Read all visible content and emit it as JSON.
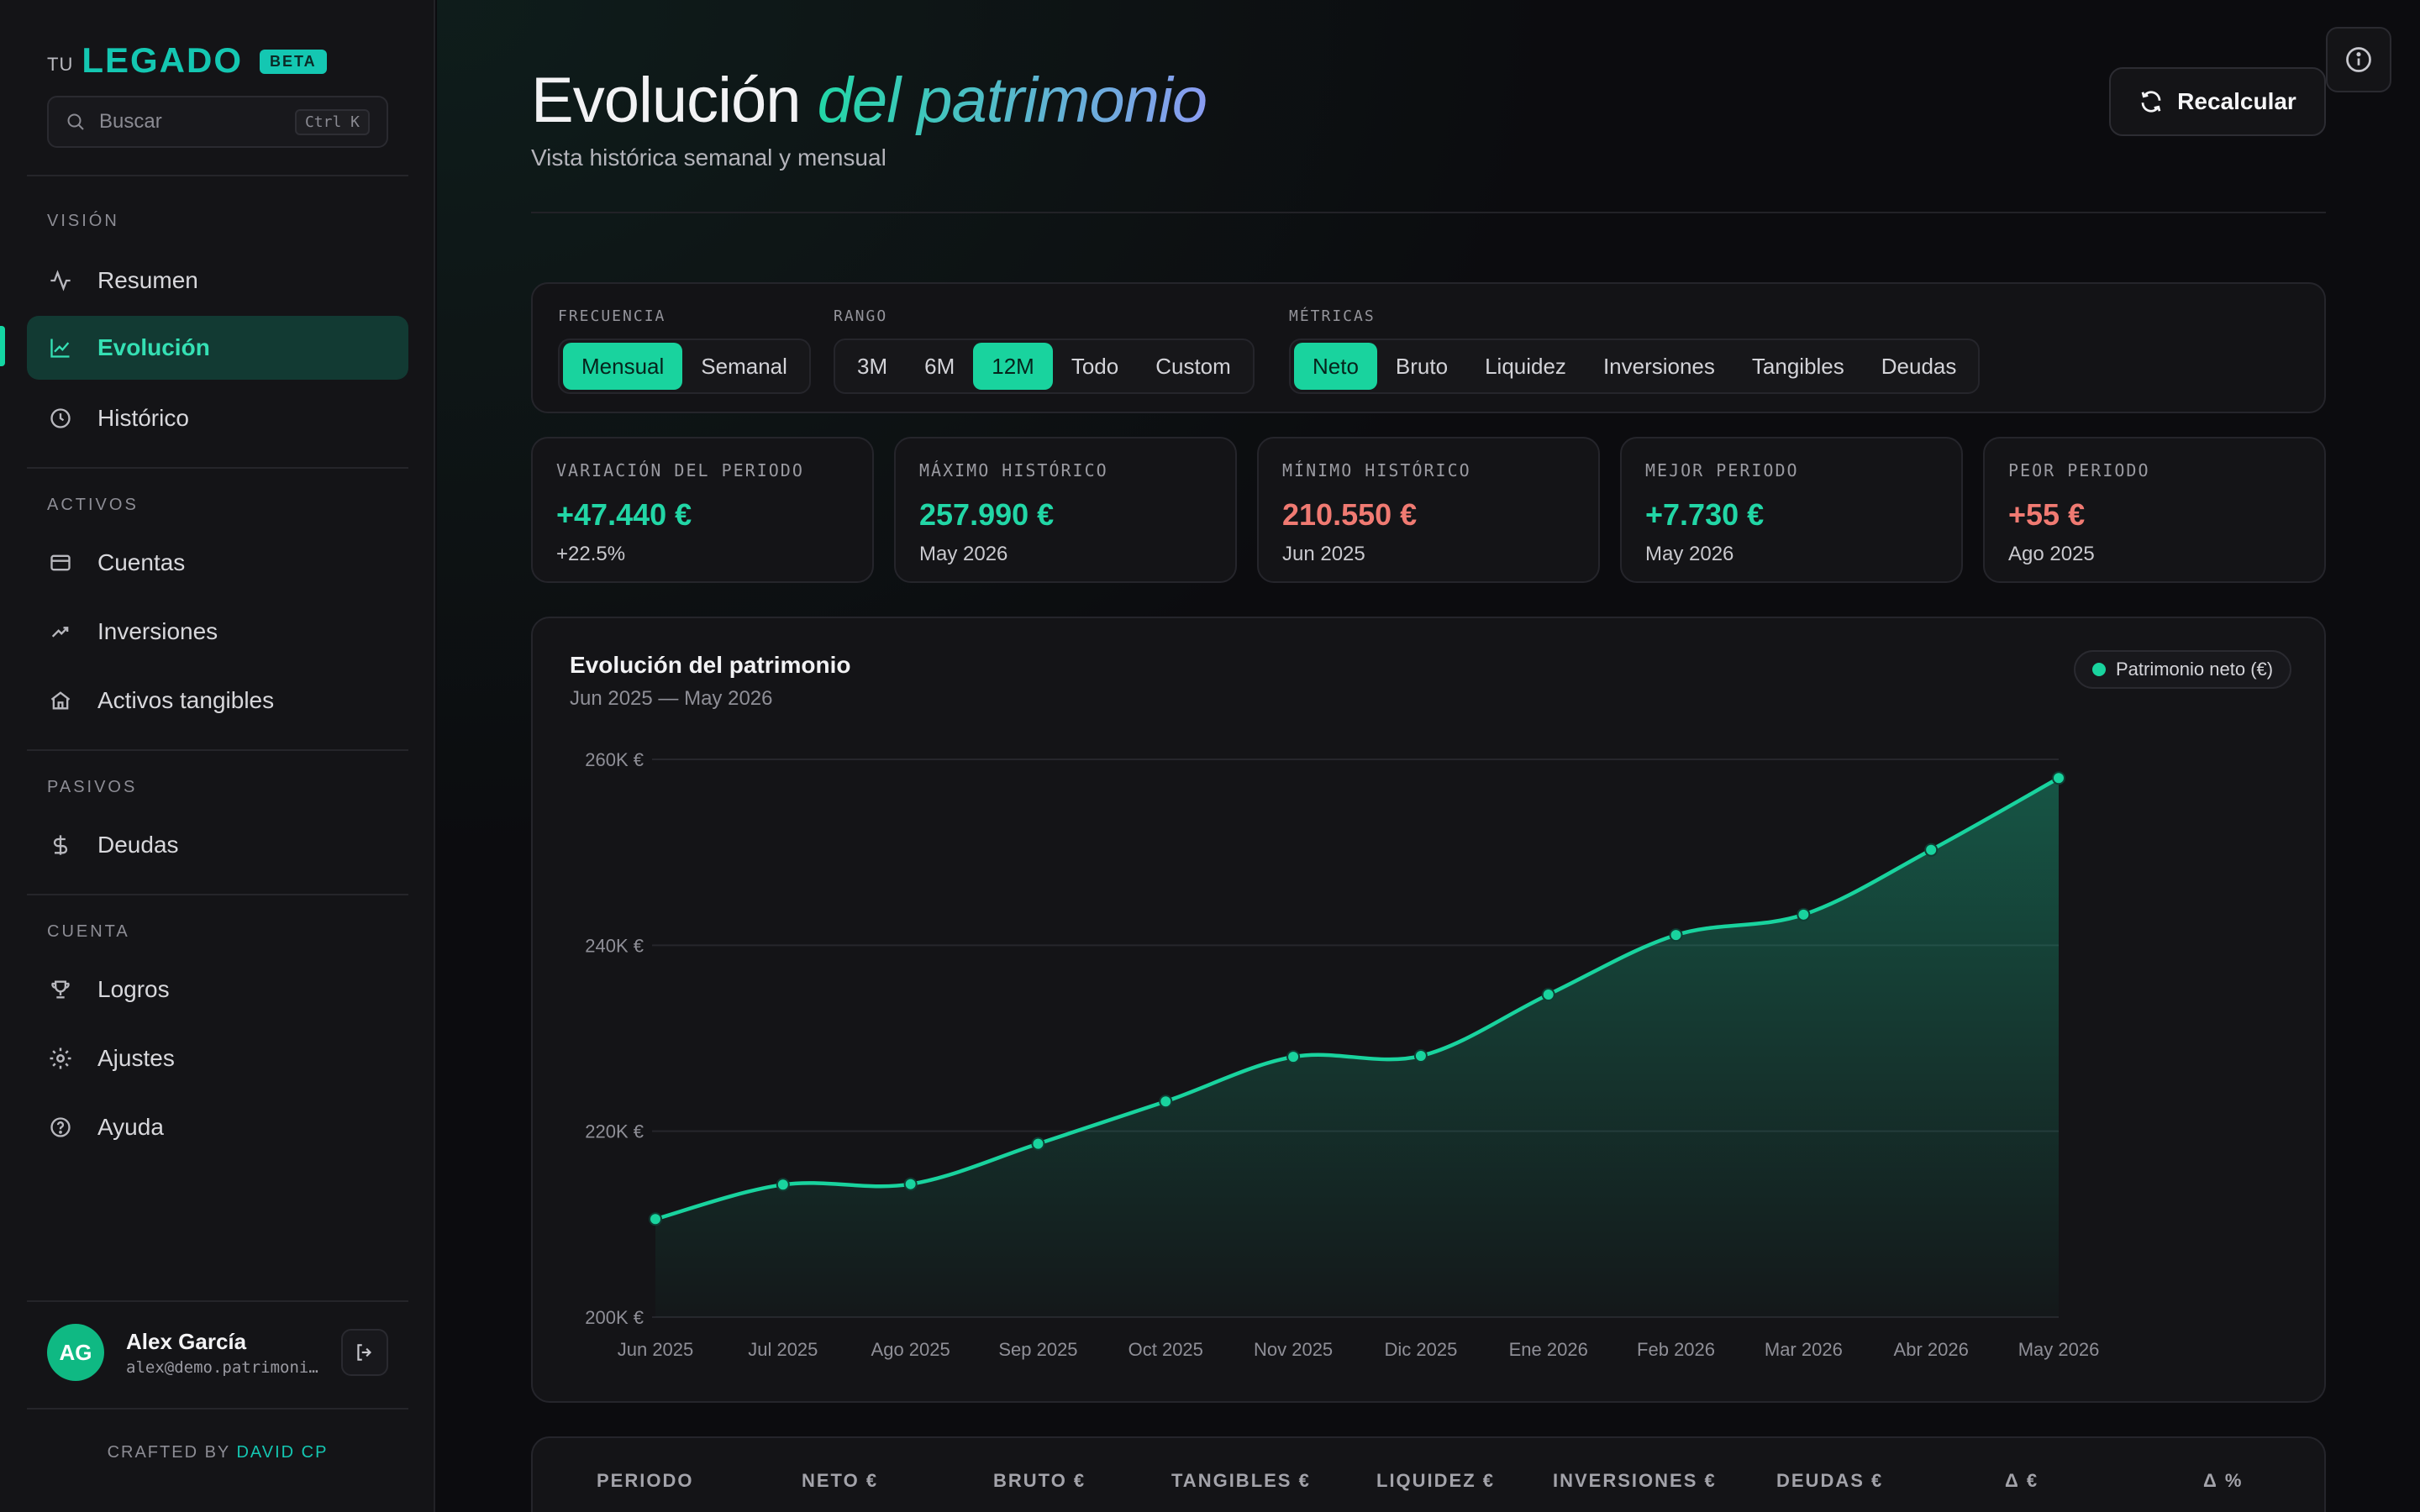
{
  "brand": {
    "prefix": "TU",
    "name": "LEGADO",
    "badge": "BETA"
  },
  "search": {
    "placeholder": "Buscar",
    "shortcut": "Ctrl K"
  },
  "nav": {
    "sections": [
      {
        "label": "VISIÓN",
        "items": [
          {
            "label": "Resumen",
            "icon": "activity-icon"
          },
          {
            "label": "Evolución",
            "icon": "chart-line-icon",
            "active": true
          },
          {
            "label": "Histórico",
            "icon": "clock-icon"
          }
        ]
      },
      {
        "label": "ACTIVOS",
        "items": [
          {
            "label": "Cuentas",
            "icon": "wallet-icon"
          },
          {
            "label": "Inversiones",
            "icon": "trending-up-icon"
          },
          {
            "label": "Activos tangibles",
            "icon": "home-icon"
          }
        ]
      },
      {
        "label": "PASIVOS",
        "items": [
          {
            "label": "Deudas",
            "icon": "dollar-icon"
          }
        ]
      },
      {
        "label": "CUENTA",
        "items": [
          {
            "label": "Logros",
            "icon": "trophy-icon"
          },
          {
            "label": "Ajustes",
            "icon": "gear-icon"
          },
          {
            "label": "Ayuda",
            "icon": "help-icon"
          }
        ]
      }
    ]
  },
  "user": {
    "initials": "AG",
    "name": "Alex García",
    "email": "alex@demo.patrimonio.app"
  },
  "footer": {
    "crafted_prefix": "CRAFTED BY",
    "author": "DAVID CP"
  },
  "header": {
    "title_plain": "Evolución",
    "title_accent": "del patrimonio",
    "subtitle": "Vista histórica semanal y mensual",
    "recalc_label": "Recalcular"
  },
  "filters": {
    "frecuencia": {
      "label": "FRECUENCIA",
      "options": [
        "Mensual",
        "Semanal"
      ],
      "selected": "Mensual"
    },
    "rango": {
      "label": "RANGO",
      "options": [
        "3M",
        "6M",
        "12M",
        "Todo",
        "Custom"
      ],
      "selected": "12M"
    },
    "metricas": {
      "label": "MÉTRICAS",
      "options": [
        "Neto",
        "Bruto",
        "Liquidez",
        "Inversiones",
        "Tangibles",
        "Deudas"
      ],
      "selected": "Neto"
    }
  },
  "stats": [
    {
      "label": "VARIACIÓN DEL PERIODO",
      "value": "+47.440 €",
      "sub": "+22.5%",
      "tone": "pos"
    },
    {
      "label": "MÁXIMO HISTÓRICO",
      "value": "257.990 €",
      "sub": "May 2026",
      "tone": "pos"
    },
    {
      "label": "MÍNIMO HISTÓRICO",
      "value": "210.550 €",
      "sub": "Jun 2025",
      "tone": "neg"
    },
    {
      "label": "MEJOR PERIODO",
      "value": "+7.730 €",
      "sub": "May 2026",
      "tone": "pos"
    },
    {
      "label": "PEOR PERIODO",
      "value": "+55 €",
      "sub": "Ago 2025",
      "tone": "neg"
    }
  ],
  "chart": {
    "title": "Evolución del patrimonio",
    "range_label": "Jun 2025 — May 2026",
    "legend": "Patrimonio neto (€)",
    "line_color": "#19d39e"
  },
  "chart_data": {
    "type": "area",
    "x": [
      "Jun 2025",
      "Jul 2025",
      "Ago 2025",
      "Sep 2025",
      "Oct 2025",
      "Nov 2025",
      "Dic 2025",
      "Ene 2026",
      "Feb 2026",
      "Mar 2026",
      "Abr 2026",
      "May 2026"
    ],
    "series": [
      {
        "name": "Patrimonio neto (€)",
        "values": [
          210550,
          214250,
          214305,
          218650,
          223200,
          228000,
          228100,
          234700,
          241100,
          243300,
          250260,
          257990
        ]
      }
    ],
    "ylim": [
      200000,
      260000
    ],
    "yticks": [
      200000,
      220000,
      240000,
      260000
    ],
    "ytick_labels": [
      "200K €",
      "220K €",
      "240K €",
      "260K €"
    ],
    "grid": true,
    "legend_position": "top-right"
  },
  "table": {
    "columns": [
      "PERIODO",
      "NETO €",
      "BRUTO €",
      "TANGIBLES €",
      "LIQUIDEZ €",
      "INVERSIONES €",
      "DEUDAS €",
      "Δ €",
      "Δ %"
    ]
  }
}
